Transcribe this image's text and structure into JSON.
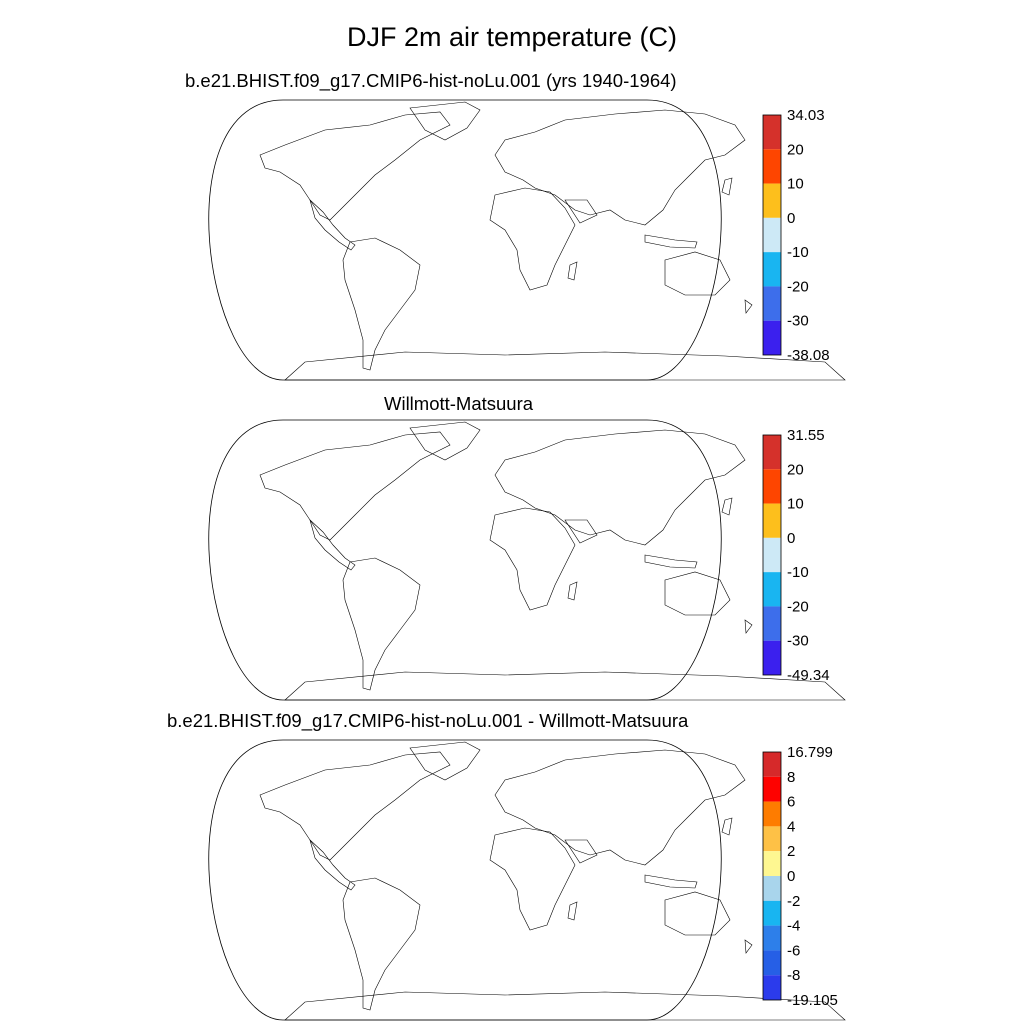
{
  "title": "DJF 2m air temperature (C)",
  "panels": [
    {
      "subtitle": "b.e21.BHIST.f09_g17.CMIP6-hist-noLu.001 (yrs 1940-1964)",
      "colorbar": {
        "labels": [
          "34.03",
          "20",
          "10",
          "0",
          "-10",
          "-20",
          "-30",
          "-38.08"
        ],
        "colors": [
          "#d5312b",
          "#fe4500",
          "#fdbf1c",
          "#cde9f6",
          "#19b5f1",
          "#3d6eeb",
          "#3b20ee"
        ]
      }
    },
    {
      "subtitle": "Willmott-Matsuura",
      "colorbar": {
        "labels": [
          "31.55",
          "20",
          "10",
          "0",
          "-10",
          "-20",
          "-30",
          "-49.34"
        ],
        "colors": [
          "#d5312b",
          "#fe4500",
          "#fdbf1c",
          "#cde9f6",
          "#19b5f1",
          "#3d6eeb",
          "#3b20ee"
        ]
      }
    },
    {
      "subtitle": "b.e21.BHIST.f09_g17.CMIP6-hist-noLu.001 - Willmott-Matsuura",
      "colorbar": {
        "labels": [
          "16.799",
          "8",
          "6",
          "4",
          "2",
          "0",
          "-2",
          "-4",
          "-6",
          "-8",
          "-19.105"
        ],
        "colors": [
          "#d6292a",
          "#fe0200",
          "#fe7c00",
          "#fec146",
          "#fef791",
          "#a9d5ec",
          "#18b5f1",
          "#2d7fea",
          "#265fe6",
          "#2b3bec"
        ]
      }
    }
  ]
}
